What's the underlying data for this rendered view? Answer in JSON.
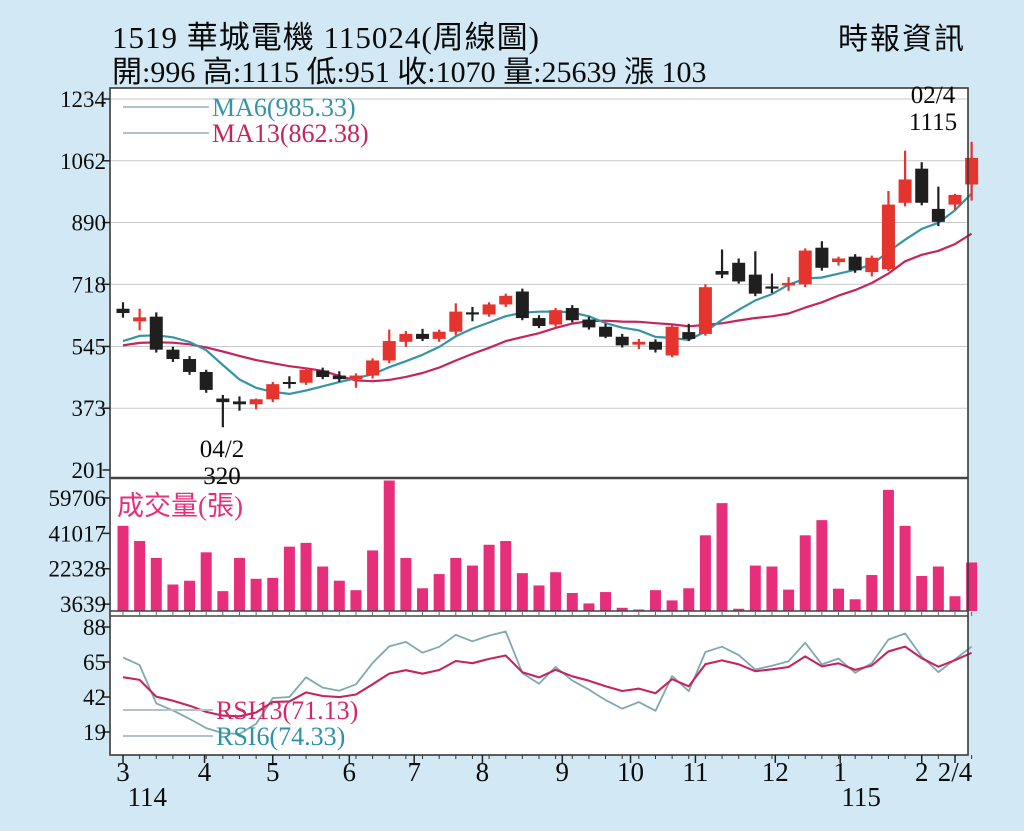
{
  "header": {
    "title": "1519 華城電機 115024(周線圖)",
    "source": "時報資訊",
    "info": "開:996 高:1115 低:951 收:1070 量:25639 漲 103"
  },
  "chart_data": {
    "type": "candlestick",
    "period": "weekly",
    "title": "1519 華城電機 周線圖",
    "price_axis_ticks": [
      1234,
      1062,
      890,
      718,
      545,
      373,
      201
    ],
    "volume_axis_ticks": [
      59706,
      41017,
      22328,
      3639
    ],
    "rsi_axis_ticks": [
      88,
      65,
      42,
      19
    ],
    "x_month_ticks": [
      {
        "label": "3",
        "week": 1
      },
      {
        "label": "4",
        "week": 5.9
      },
      {
        "label": "5",
        "week": 10
      },
      {
        "label": "6",
        "week": 14.6
      },
      {
        "label": "7",
        "week": 18.5
      },
      {
        "label": "8",
        "week": 22.6
      },
      {
        "label": "9",
        "week": 27.4
      },
      {
        "label": "10",
        "week": 31.5
      },
      {
        "label": "11",
        "week": 35.4
      },
      {
        "label": "12",
        "week": 40.2
      },
      {
        "label": "1",
        "week": 44.1
      },
      {
        "label": "2",
        "week": 49
      },
      {
        "label": "2/4",
        "week": 51
      }
    ],
    "era_ticks": [
      {
        "label": "114",
        "week": 1.8
      },
      {
        "label": "115",
        "week": 44.7
      }
    ],
    "volume_label": "成交量(張)",
    "ma": {
      "ma6_label": "MA6(985.33)",
      "ma6_value": 985.33,
      "ma6_start": 560,
      "ma13_label": "MA13(862.38)",
      "ma13_value": 862.38,
      "ma13_start": 548
    },
    "rsi": {
      "rsi13_label": "RSI13(71.13)",
      "rsi13_value": 71.13,
      "rsi13_start": 55,
      "rsi6_label": "RSI6(74.33)",
      "rsi6_value": 74.33,
      "rsi6_start": 68
    },
    "annotations": [
      {
        "week": 7,
        "lines": [
          "04/2",
          "320"
        ],
        "placement": "below"
      },
      {
        "week": 51,
        "lines": [
          "02/4",
          "1115"
        ],
        "placement": "above"
      }
    ],
    "weeks_format": [
      "open",
      "high",
      "low",
      "close",
      "volume"
    ],
    "weeks": [
      [
        650,
        668,
        625,
        638,
        45000
      ],
      [
        615,
        650,
        590,
        626,
        37000
      ],
      [
        628,
        640,
        528,
        536,
        28000
      ],
      [
        536,
        544,
        502,
        510,
        14000
      ],
      [
        510,
        518,
        466,
        474,
        16000
      ],
      [
        474,
        480,
        416,
        424,
        31000
      ],
      [
        400,
        410,
        320,
        390,
        10500
      ],
      [
        392,
        406,
        366,
        384,
        28000
      ],
      [
        384,
        400,
        370,
        398,
        17000
      ],
      [
        398,
        446,
        390,
        440,
        17500
      ],
      [
        446,
        462,
        428,
        442,
        34000
      ],
      [
        444,
        484,
        438,
        480,
        36000
      ],
      [
        478,
        486,
        454,
        460,
        23500
      ],
      [
        464,
        476,
        446,
        454,
        16000
      ],
      [
        454,
        470,
        430,
        464,
        11000
      ],
      [
        464,
        512,
        456,
        506,
        32000
      ],
      [
        506,
        592,
        498,
        560,
        70258
      ],
      [
        558,
        588,
        544,
        580,
        28000
      ],
      [
        580,
        594,
        560,
        566,
        12000
      ],
      [
        566,
        592,
        558,
        586,
        19500
      ],
      [
        586,
        665,
        576,
        642,
        28000
      ],
      [
        640,
        655,
        615,
        634,
        24000
      ],
      [
        634,
        668,
        628,
        662,
        35000
      ],
      [
        662,
        692,
        655,
        686,
        37000
      ],
      [
        698,
        706,
        618,
        624,
        20000
      ],
      [
        624,
        632,
        596,
        602,
        13500
      ],
      [
        606,
        652,
        600,
        646,
        20500
      ],
      [
        652,
        660,
        612,
        618,
        9500
      ],
      [
        620,
        628,
        592,
        598,
        4000
      ],
      [
        600,
        608,
        568,
        572,
        10000
      ],
      [
        572,
        580,
        542,
        548,
        1700
      ],
      [
        550,
        566,
        538,
        558,
        800
      ],
      [
        558,
        565,
        528,
        536,
        11000
      ],
      [
        520,
        604,
        515,
        600,
        5600
      ],
      [
        585,
        608,
        560,
        566,
        12000
      ],
      [
        580,
        718,
        575,
        710,
        40000
      ],
      [
        755,
        815,
        735,
        745,
        57000
      ],
      [
        778,
        790,
        720,
        726,
        1200
      ],
      [
        745,
        810,
        685,
        692,
        24000
      ],
      [
        712,
        748,
        694,
        706,
        23500
      ],
      [
        715,
        738,
        700,
        722,
        11300
      ],
      [
        718,
        818,
        710,
        812,
        40000
      ],
      [
        820,
        838,
        756,
        764,
        48000
      ],
      [
        780,
        795,
        770,
        790,
        11800
      ],
      [
        795,
        802,
        750,
        757,
        6200
      ],
      [
        752,
        798,
        740,
        792,
        19000
      ],
      [
        760,
        978,
        755,
        940,
        64000
      ],
      [
        945,
        1090,
        935,
        1010,
        45000
      ],
      [
        1040,
        1058,
        938,
        945,
        18500
      ],
      [
        928,
        990,
        880,
        892,
        23500
      ],
      [
        940,
        970,
        925,
        967,
        7800
      ],
      [
        996,
        1115,
        951,
        1070,
        25639
      ]
    ],
    "colors": {
      "background": "#d2e9f5",
      "pane": "#ffffff",
      "border": "#3a3a3a",
      "grid": "#c9c9c9",
      "up": "#e5332e",
      "down": "#1f1f1f",
      "ma6": "#3595a5",
      "ma13": "#c4255e",
      "volume": "#e62e7b",
      "rsi6_line": "#7fa8b2",
      "rsi13_line": "#c4255e",
      "rsi6_text": "#2a93a8",
      "rsi13_text": "#d6266a",
      "axis_text": "#0c0c0c",
      "swatch": "#b3c2ca"
    }
  }
}
